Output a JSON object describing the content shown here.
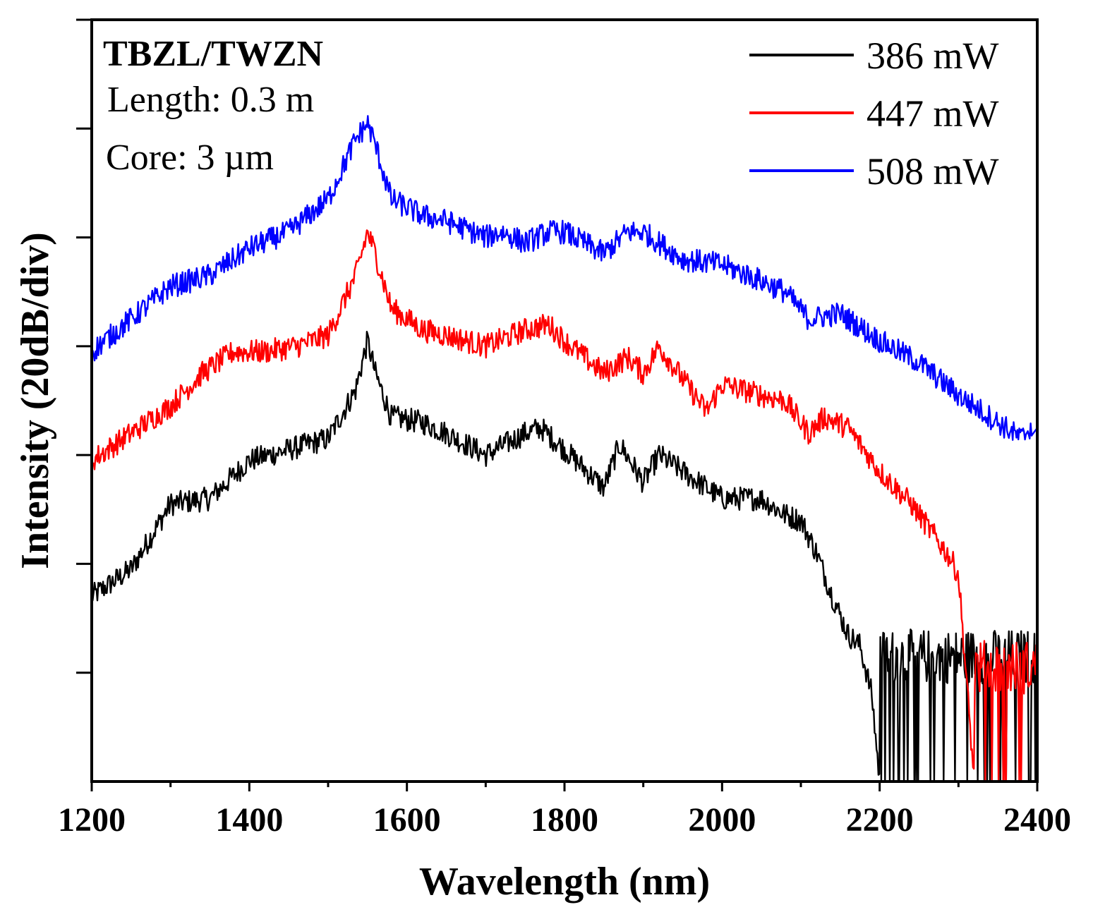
{
  "chart_data": {
    "type": "line",
    "xlabel": "Wavelength (nm)",
    "ylabel": "Intensity (20dB/div)",
    "xlim": [
      1200,
      2400
    ],
    "ylim": [
      0,
      7
    ],
    "x_ticks": [
      "1200",
      "1400",
      "1600",
      "1800",
      "2000",
      "2200",
      "2400"
    ],
    "y_divisions": 7,
    "annotations": {
      "title": "TBZL/TWZN",
      "length": "Length: 0.3 m",
      "core": "Core: 3 µm"
    },
    "legend_position": "top-right",
    "series": [
      {
        "name": "386 mW",
        "color": "#000000",
        "noise_floor": 0.55,
        "points": [
          [
            1200,
            1.7
          ],
          [
            1250,
            1.95
          ],
          [
            1300,
            2.55
          ],
          [
            1350,
            2.6
          ],
          [
            1400,
            2.95
          ],
          [
            1450,
            3.05
          ],
          [
            1500,
            3.15
          ],
          [
            1535,
            3.6
          ],
          [
            1550,
            4.05
          ],
          [
            1560,
            3.75
          ],
          [
            1580,
            3.35
          ],
          [
            1620,
            3.3
          ],
          [
            1650,
            3.2
          ],
          [
            1700,
            3.0
          ],
          [
            1750,
            3.2
          ],
          [
            1770,
            3.25
          ],
          [
            1800,
            3.05
          ],
          [
            1850,
            2.7
          ],
          [
            1870,
            3.1
          ],
          [
            1900,
            2.75
          ],
          [
            1920,
            3.0
          ],
          [
            1950,
            2.85
          ],
          [
            2000,
            2.6
          ],
          [
            2050,
            2.6
          ],
          [
            2080,
            2.45
          ],
          [
            2100,
            2.4
          ],
          [
            2120,
            2.1
          ],
          [
            2140,
            1.7
          ],
          [
            2160,
            1.35
          ],
          [
            2175,
            1.25
          ],
          [
            2190,
            0.8
          ],
          [
            2200,
            0.0
          ]
        ]
      },
      {
        "name": "447 mW",
        "color": "#ff0000",
        "noise_floor": 0.45,
        "points": [
          [
            1200,
            2.95
          ],
          [
            1250,
            3.2
          ],
          [
            1300,
            3.45
          ],
          [
            1340,
            3.75
          ],
          [
            1380,
            3.95
          ],
          [
            1420,
            3.95
          ],
          [
            1460,
            4.0
          ],
          [
            1500,
            4.1
          ],
          [
            1535,
            4.65
          ],
          [
            1550,
            5.05
          ],
          [
            1560,
            4.85
          ],
          [
            1580,
            4.35
          ],
          [
            1620,
            4.15
          ],
          [
            1650,
            4.1
          ],
          [
            1700,
            4.0
          ],
          [
            1750,
            4.15
          ],
          [
            1780,
            4.2
          ],
          [
            1800,
            4.05
          ],
          [
            1850,
            3.75
          ],
          [
            1880,
            3.9
          ],
          [
            1900,
            3.75
          ],
          [
            1920,
            4.0
          ],
          [
            1950,
            3.7
          ],
          [
            1980,
            3.4
          ],
          [
            2000,
            3.65
          ],
          [
            2050,
            3.55
          ],
          [
            2080,
            3.5
          ],
          [
            2110,
            3.2
          ],
          [
            2130,
            3.35
          ],
          [
            2160,
            3.25
          ],
          [
            2200,
            2.85
          ],
          [
            2240,
            2.55
          ],
          [
            2270,
            2.25
          ],
          [
            2290,
            2.05
          ],
          [
            2300,
            1.9
          ],
          [
            2320,
            0.0
          ]
        ]
      },
      {
        "name": "508 mW",
        "color": "#0000ff",
        "noise_floor": 0.35,
        "points": [
          [
            1200,
            3.95
          ],
          [
            1250,
            4.25
          ],
          [
            1300,
            4.55
          ],
          [
            1350,
            4.65
          ],
          [
            1400,
            4.9
          ],
          [
            1450,
            5.05
          ],
          [
            1500,
            5.35
          ],
          [
            1535,
            5.9
          ],
          [
            1550,
            6.05
          ],
          [
            1560,
            5.85
          ],
          [
            1580,
            5.35
          ],
          [
            1620,
            5.2
          ],
          [
            1650,
            5.15
          ],
          [
            1700,
            5.0
          ],
          [
            1720,
            5.05
          ],
          [
            1750,
            4.95
          ],
          [
            1780,
            5.05
          ],
          [
            1800,
            5.05
          ],
          [
            1850,
            4.85
          ],
          [
            1880,
            5.05
          ],
          [
            1900,
            5.05
          ],
          [
            1950,
            4.8
          ],
          [
            2000,
            4.75
          ],
          [
            2050,
            4.6
          ],
          [
            2080,
            4.5
          ],
          [
            2110,
            4.25
          ],
          [
            2150,
            4.3
          ],
          [
            2200,
            4.05
          ],
          [
            2250,
            3.85
          ],
          [
            2300,
            3.55
          ],
          [
            2350,
            3.3
          ],
          [
            2380,
            3.15
          ],
          [
            2400,
            3.35
          ]
        ]
      }
    ]
  }
}
